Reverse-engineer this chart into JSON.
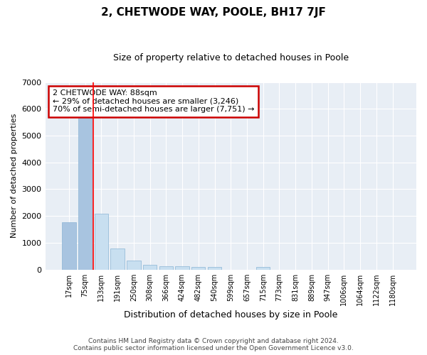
{
  "title": "2, CHETWODE WAY, POOLE, BH17 7JF",
  "subtitle": "Size of property relative to detached houses in Poole",
  "xlabel": "Distribution of detached houses by size in Poole",
  "ylabel": "Number of detached properties",
  "bar_labels": [
    "17sqm",
    "75sqm",
    "133sqm",
    "191sqm",
    "250sqm",
    "308sqm",
    "366sqm",
    "424sqm",
    "482sqm",
    "540sqm",
    "599sqm",
    "657sqm",
    "715sqm",
    "773sqm",
    "831sqm",
    "889sqm",
    "947sqm",
    "1006sqm",
    "1064sqm",
    "1122sqm",
    "1180sqm"
  ],
  "bar_values": [
    1780,
    5780,
    2080,
    800,
    340,
    190,
    130,
    120,
    110,
    90,
    0,
    0,
    100,
    0,
    0,
    0,
    0,
    0,
    0,
    0,
    0
  ],
  "bar_color_left": "#a8c4e0",
  "bar_color_right": "#c8dff0",
  "bar_edge_color": "#8ab4d4",
  "ylim": [
    0,
    7000
  ],
  "yticks": [
    0,
    1000,
    2000,
    3000,
    4000,
    5000,
    6000,
    7000
  ],
  "annotation_box_text": "2 CHETWODE WAY: 88sqm\n← 29% of detached houses are smaller (3,246)\n70% of semi-detached houses are larger (7,751) →",
  "annotation_box_edge_color": "#cc0000",
  "footer_line1": "Contains HM Land Registry data © Crown copyright and database right 2024.",
  "footer_line2": "Contains public sector information licensed under the Open Government Licence v3.0.",
  "bg_color": "#e8eef5",
  "grid_color": "#ffffff",
  "vline_x": 1.5,
  "split_idx": 2,
  "figsize": [
    6.0,
    5.0
  ],
  "dpi": 100,
  "title_fontsize": 11,
  "subtitle_fontsize": 9,
  "ylabel_fontsize": 8,
  "xlabel_fontsize": 9,
  "tick_fontsize": 7,
  "annot_fontsize": 8,
  "footer_fontsize": 6.5
}
